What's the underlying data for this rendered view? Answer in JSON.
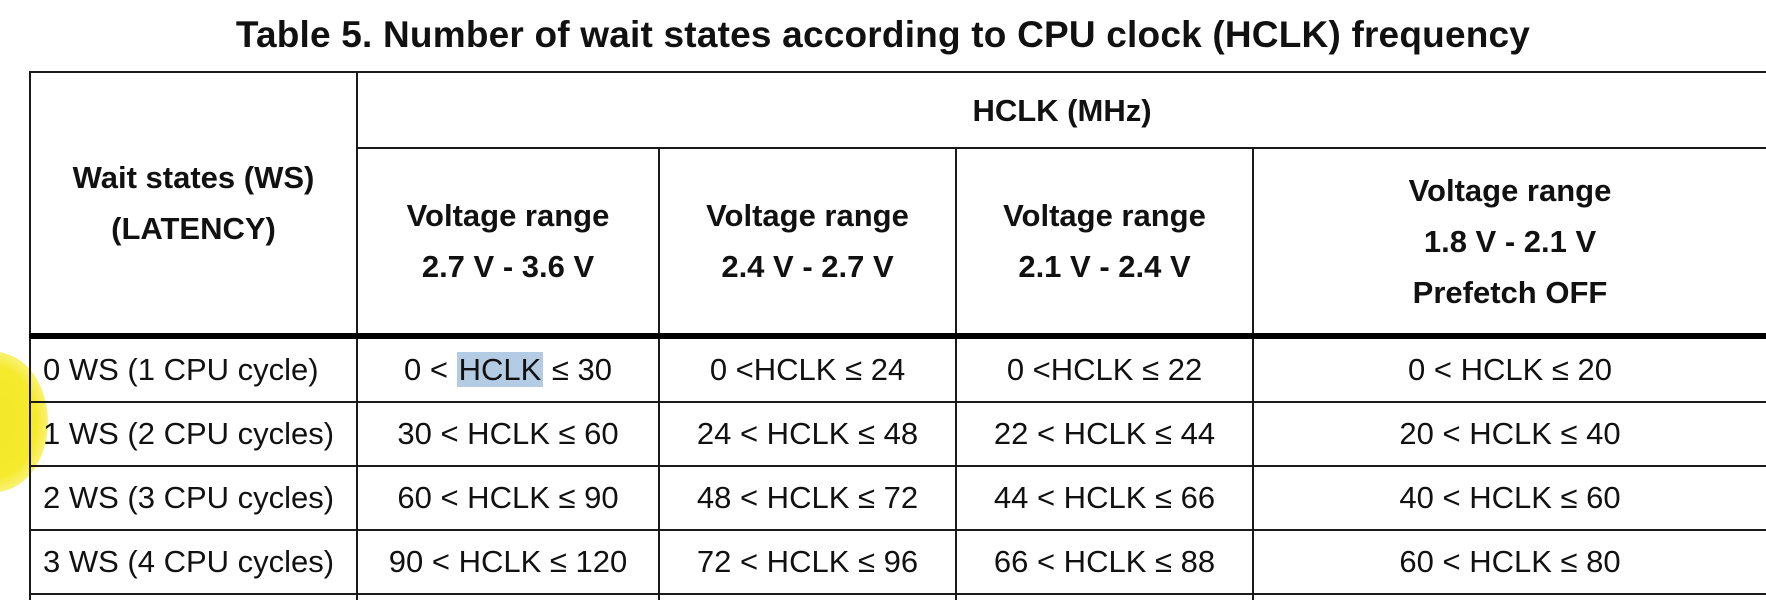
{
  "caption": "Table 5. Number of wait states according to CPU clock (HCLK) frequency",
  "header": {
    "ws_line1": "Wait states (WS)",
    "ws_line2": "(LATENCY)",
    "hclk": "HCLK (MHz)",
    "ranges": [
      {
        "line1": "Voltage range",
        "line2": "2.7 V - 3.6 V",
        "line3": ""
      },
      {
        "line1": "Voltage range",
        "line2": "2.4 V - 2.7 V",
        "line3": ""
      },
      {
        "line1": "Voltage range",
        "line2": "2.1 V - 2.4 V",
        "line3": ""
      },
      {
        "line1": "Voltage range",
        "line2": "1.8 V - 2.1 V",
        "line3": "Prefetch OFF"
      }
    ]
  },
  "rows": [
    {
      "ws": "0 WS (1 CPU cycle)",
      "c0_pre": "0 < ",
      "c0_hl": "HCLK",
      "c0_post": " ≤ 30",
      "c1": "0 <HCLK ≤ 24",
      "c2": "0 <HCLK ≤ 22",
      "c3": "0 < HCLK ≤ 20"
    },
    {
      "ws": "1 WS (2 CPU cycles)",
      "c0": "30 < HCLK ≤ 60",
      "c1": "24 < HCLK ≤ 48",
      "c2": "22 < HCLK ≤ 44",
      "c3": "20 < HCLK ≤ 40"
    },
    {
      "ws": "2 WS (3 CPU cycles)",
      "c0": "60 < HCLK ≤ 90",
      "c1": "48 < HCLK ≤ 72",
      "c2": "44 < HCLK ≤ 66",
      "c3": "40 < HCLK ≤ 60"
    },
    {
      "ws": "3 WS (4 CPU cycles)",
      "c0": "90 < HCLK ≤ 120",
      "c1": "72 < HCLK ≤ 96",
      "c2": "66 < HCLK ≤ 88",
      "c3": "60 < HCLK ≤ 80"
    }
  ],
  "colors": {
    "selection_highlight": "#b4cbe4",
    "cursor_highlight": "#f6ea2c"
  }
}
